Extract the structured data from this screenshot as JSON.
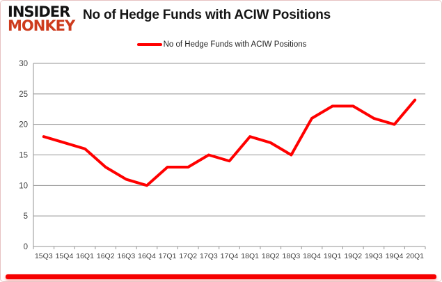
{
  "brand": {
    "line1": "INSIDER",
    "line2": "MONKEY"
  },
  "header": {
    "title": "No of Hedge Funds with ACIW Positions"
  },
  "legend": {
    "label": "No of Hedge Funds with ACIW Positions"
  },
  "colors": {
    "series_line": "#ff0000",
    "brand_red": "#cd3b1d",
    "grid": "#939393",
    "tick_text": "#3f3f3f",
    "accent_bar": "#f60000"
  },
  "chart_data": {
    "type": "line",
    "title": "No of Hedge Funds with ACIW Positions",
    "categories": [
      "15Q3",
      "15Q4",
      "16Q1",
      "16Q2",
      "16Q3",
      "16Q4",
      "17Q1",
      "17Q2",
      "17Q3",
      "17Q4",
      "18Q1",
      "18Q2",
      "18Q3",
      "18Q4",
      "19Q1",
      "19Q2",
      "19Q3",
      "19Q4",
      "20Q1"
    ],
    "series": [
      {
        "name": "No of Hedge Funds with ACIW Positions",
        "values": [
          18,
          17,
          16,
          13,
          11,
          10,
          13,
          13,
          15,
          14,
          18,
          17,
          15,
          21,
          23,
          23,
          21,
          20,
          24
        ]
      }
    ],
    "xlabel": "",
    "ylabel": "",
    "ylim": [
      0,
      30
    ],
    "ytick_interval": 5,
    "grid": true,
    "legend_position": "top-center",
    "line_color": "#ff0000",
    "grid_color": "#939393",
    "tick_color": "#3f3f3f"
  }
}
